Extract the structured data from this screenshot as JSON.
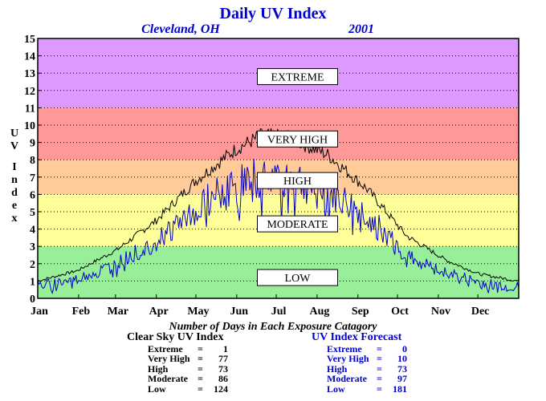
{
  "chart_data": {
    "type": "line",
    "title": "Daily UV Index",
    "location": "Cleveland, OH",
    "year": "2001",
    "ylabel": "UV Index",
    "ylim": [
      0,
      15
    ],
    "yticks": [
      0,
      1,
      2,
      3,
      4,
      5,
      6,
      7,
      8,
      9,
      10,
      11,
      12,
      13,
      14,
      15
    ],
    "xlim": [
      0,
      365
    ],
    "month_labels": [
      "Jan",
      "Feb",
      "Mar",
      "Apr",
      "May",
      "Jun",
      "Jul",
      "Aug",
      "Sep",
      "Oct",
      "Nov",
      "Dec"
    ],
    "grid": true,
    "bands": [
      {
        "label": "LOW",
        "from": 0,
        "to": 3,
        "color": "#99ee99",
        "label_y": 1.2
      },
      {
        "label": "MODERATE",
        "from": 3,
        "to": 6,
        "color": "#ffff99",
        "label_y": 4.3
      },
      {
        "label": "HIGH",
        "from": 6,
        "to": 8,
        "color": "#ffcc99",
        "label_y": 6.8
      },
      {
        "label": "VERY HIGH",
        "from": 8,
        "to": 11,
        "color": "#ff9999",
        "label_y": 9.2
      },
      {
        "label": "EXTREME",
        "from": 11,
        "to": 15,
        "color": "#dd99ff",
        "label_y": 12.8
      }
    ],
    "series": [
      {
        "key": "clear_sky",
        "color": "#000000",
        "envelope": [
          [
            0,
            1.0
          ],
          [
            30,
            1.6
          ],
          [
            60,
            2.8
          ],
          [
            90,
            4.5
          ],
          [
            120,
            6.8
          ],
          [
            150,
            8.6
          ],
          [
            170,
            9.4
          ],
          [
            190,
            9.3
          ],
          [
            220,
            8.3
          ],
          [
            250,
            6.3
          ],
          [
            280,
            3.6
          ],
          [
            310,
            2.2
          ],
          [
            335,
            1.4
          ],
          [
            365,
            1.0
          ]
        ],
        "amplitude": 0.35,
        "seed": 7
      },
      {
        "key": "forecast",
        "color": "#0000cc",
        "envelope": [
          [
            0,
            0.7
          ],
          [
            30,
            1.1
          ],
          [
            60,
            2.0
          ],
          [
            90,
            3.3
          ],
          [
            120,
            5.2
          ],
          [
            150,
            6.5
          ],
          [
            170,
            7.0
          ],
          [
            190,
            7.0
          ],
          [
            220,
            6.0
          ],
          [
            250,
            4.8
          ],
          [
            280,
            2.4
          ],
          [
            310,
            1.5
          ],
          [
            335,
            0.9
          ],
          [
            365,
            0.6
          ]
        ],
        "amplitude": 1.3,
        "seed": 19
      }
    ]
  },
  "caption": "Number of Days in Each Exposure Catagory",
  "clear_sky_table": {
    "heading": "Clear Sky UV Index",
    "rows": [
      {
        "label": "Extreme",
        "value": "1"
      },
      {
        "label": "Very High",
        "value": "77"
      },
      {
        "label": "High",
        "value": "73"
      },
      {
        "label": "Moderate",
        "value": "86"
      },
      {
        "label": "Low",
        "value": "124"
      }
    ]
  },
  "forecast_table": {
    "heading": "UV Index Forecast",
    "rows": [
      {
        "label": "Extreme",
        "value": "0"
      },
      {
        "label": "Very High",
        "value": "10"
      },
      {
        "label": "High",
        "value": "73"
      },
      {
        "label": "Moderate",
        "value": "97"
      },
      {
        "label": "Low",
        "value": "181"
      }
    ]
  }
}
